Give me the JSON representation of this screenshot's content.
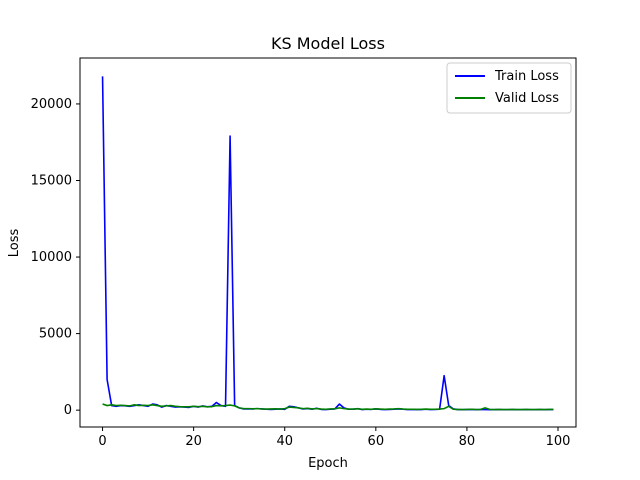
{
  "chart_data": {
    "type": "line",
    "title": "KS Model Loss",
    "xlabel": "Epoch",
    "ylabel": "Loss",
    "xlim": [
      -4.95,
      103.95
    ],
    "ylim": [
      -1100,
      23000
    ],
    "xticks": [
      0,
      20,
      40,
      60,
      80,
      100
    ],
    "yticks": [
      0,
      5000,
      10000,
      15000,
      20000
    ],
    "grid": false,
    "legend_position": "top-right",
    "series": [
      {
        "name": "Train Loss",
        "color": "#0000ff",
        "x": [
          0,
          1,
          2,
          3,
          4,
          5,
          6,
          7,
          8,
          9,
          10,
          11,
          12,
          13,
          14,
          15,
          16,
          17,
          18,
          19,
          20,
          21,
          22,
          23,
          24,
          25,
          26,
          27,
          28,
          29,
          30,
          31,
          32,
          33,
          34,
          35,
          36,
          37,
          38,
          39,
          40,
          41,
          42,
          43,
          44,
          45,
          46,
          47,
          48,
          49,
          50,
          51,
          52,
          53,
          54,
          55,
          56,
          57,
          58,
          59,
          60,
          61,
          62,
          63,
          64,
          65,
          66,
          67,
          68,
          69,
          70,
          71,
          72,
          73,
          74,
          75,
          76,
          77,
          78,
          79,
          80,
          81,
          82,
          83,
          84,
          85,
          86,
          87,
          88,
          89,
          90,
          91,
          92,
          93,
          94,
          95,
          96,
          97,
          98,
          99
        ],
        "values": [
          21800,
          2000,
          300,
          250,
          300,
          280,
          250,
          300,
          350,
          300,
          250,
          400,
          350,
          200,
          300,
          250,
          200,
          220,
          200,
          180,
          250,
          200,
          280,
          220,
          250,
          500,
          300,
          250,
          17900,
          300,
          150,
          80,
          80,
          80,
          100,
          80,
          60,
          50,
          60,
          80,
          50,
          250,
          220,
          150,
          80,
          100,
          60,
          120,
          50,
          40,
          60,
          80,
          400,
          150,
          60,
          60,
          100,
          40,
          60,
          50,
          80,
          50,
          40,
          50,
          60,
          80,
          60,
          40,
          50,
          40,
          40,
          60,
          40,
          50,
          60,
          2250,
          300,
          80,
          40,
          30,
          40,
          50,
          30,
          40,
          40,
          30,
          30,
          40,
          30,
          30,
          40,
          30,
          30,
          40,
          30,
          30,
          40,
          30,
          40,
          40
        ]
      },
      {
        "name": "Valid Loss",
        "color": "#008000",
        "x": [
          0,
          1,
          2,
          3,
          4,
          5,
          6,
          7,
          8,
          9,
          10,
          11,
          12,
          13,
          14,
          15,
          16,
          17,
          18,
          19,
          20,
          21,
          22,
          23,
          24,
          25,
          26,
          27,
          28,
          29,
          30,
          31,
          32,
          33,
          34,
          35,
          36,
          37,
          38,
          39,
          40,
          41,
          42,
          43,
          44,
          45,
          46,
          47,
          48,
          49,
          50,
          51,
          52,
          53,
          54,
          55,
          56,
          57,
          58,
          59,
          60,
          61,
          62,
          63,
          64,
          65,
          66,
          67,
          68,
          69,
          70,
          71,
          72,
          73,
          74,
          75,
          76,
          77,
          78,
          79,
          80,
          81,
          82,
          83,
          84,
          85,
          86,
          87,
          88,
          89,
          90,
          91,
          92,
          93,
          94,
          95,
          96,
          97,
          98,
          99
        ],
        "values": [
          400,
          300,
          350,
          300,
          320,
          300,
          280,
          350,
          300,
          320,
          300,
          350,
          300,
          250,
          280,
          300,
          250,
          230,
          220,
          220,
          250,
          230,
          250,
          220,
          230,
          300,
          280,
          300,
          330,
          280,
          150,
          100,
          100,
          90,
          100,
          80,
          70,
          80,
          90,
          70,
          100,
          200,
          180,
          150,
          100,
          120,
          80,
          100,
          70,
          60,
          80,
          90,
          150,
          100,
          70,
          70,
          90,
          60,
          70,
          60,
          90,
          70,
          60,
          70,
          80,
          100,
          70,
          60,
          60,
          50,
          60,
          70,
          60,
          60,
          70,
          100,
          250,
          60,
          50,
          40,
          50,
          60,
          40,
          50,
          150,
          50,
          40,
          50,
          40,
          40,
          50,
          40,
          40,
          50,
          40,
          40,
          50,
          40,
          50,
          50
        ]
      }
    ]
  }
}
